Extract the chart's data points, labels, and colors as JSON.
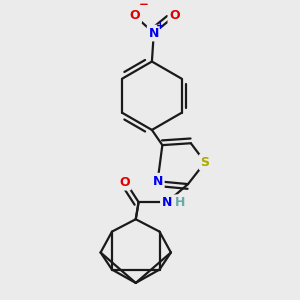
{
  "bg_color": "#ebebeb",
  "bond_color": "#1a1a1a",
  "bond_width": 1.6,
  "atom_colors": {
    "N": "#0000ee",
    "O": "#dd0000",
    "S": "#aaaa00",
    "H": "#66aaaa",
    "C": "#1a1a1a"
  },
  "font_size": 8.5
}
